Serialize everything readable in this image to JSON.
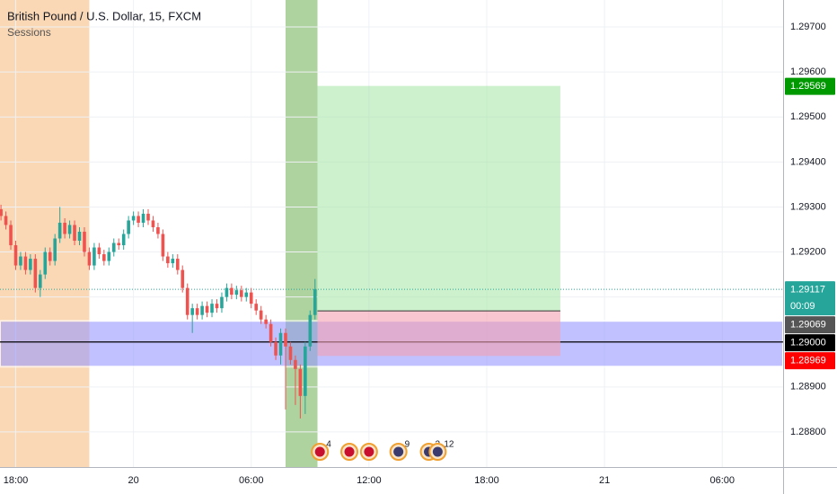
{
  "header": {
    "title": "British Pound / U.S. Dollar, 15, FXCM",
    "indicator": "Sessions"
  },
  "chart_data": {
    "type": "candlestick",
    "x": [
      17.25,
      17.5,
      17.75,
      18,
      18.25,
      18.5,
      18.75,
      19,
      19.25,
      19.5,
      19.75,
      20,
      20.25,
      20.5,
      20.75,
      21,
      21.25,
      21.5,
      21.75,
      22,
      22.25,
      22.5,
      22.75,
      23,
      23.25,
      23.5,
      23.75,
      24,
      24.25,
      24.5,
      24.75,
      25,
      25.25,
      25.5,
      25.75,
      26,
      26.25,
      26.5,
      26.75,
      27,
      27.25,
      27.5,
      27.75,
      28,
      28.25,
      28.5,
      28.75,
      29,
      29.25,
      29.5,
      29.75,
      30,
      30.25,
      30.5,
      30.75,
      31,
      31.25,
      31.5,
      31.75,
      32,
      32.25,
      32.5,
      32.75,
      33,
      33.25
    ],
    "open": [
      1.29295,
      1.2928,
      1.2926,
      1.29215,
      1.2917,
      1.2919,
      1.2916,
      1.29185,
      1.2912,
      1.2915,
      1.292,
      1.2918,
      1.2923,
      1.29265,
      1.2924,
      1.2926,
      1.29225,
      1.29245,
      1.292,
      1.2917,
      1.2921,
      1.29195,
      1.2918,
      1.292,
      1.2922,
      1.29215,
      1.2924,
      1.2927,
      1.2928,
      1.29265,
      1.29285,
      1.2927,
      1.29255,
      1.2924,
      1.2919,
      1.29175,
      1.29185,
      1.2916,
      1.2912,
      1.2906,
      1.29075,
      1.2906,
      1.2908,
      1.29065,
      1.29085,
      1.29075,
      1.291,
      1.2912,
      1.29105,
      1.29115,
      1.291,
      1.2911,
      1.29085,
      1.2907,
      1.2905,
      1.2904,
      1.29,
      1.2897,
      1.2902,
      1.2899,
      1.2896,
      1.2894,
      1.2888,
      1.2899,
      1.2906
    ],
    "high": [
      1.29305,
      1.2929,
      1.2927,
      1.29225,
      1.292,
      1.292,
      1.29195,
      1.29195,
      1.2916,
      1.2921,
      1.2921,
      1.2924,
      1.293,
      1.29275,
      1.2927,
      1.2927,
      1.29255,
      1.29255,
      1.2921,
      1.2922,
      1.2922,
      1.29205,
      1.2921,
      1.2923,
      1.2923,
      1.2925,
      1.2928,
      1.2929,
      1.2929,
      1.29295,
      1.29295,
      1.2928,
      1.29265,
      1.2925,
      1.292,
      1.29195,
      1.29195,
      1.2917,
      1.2913,
      1.29085,
      1.29085,
      1.2909,
      1.2909,
      1.29095,
      1.29095,
      1.2911,
      1.2913,
      1.2913,
      1.29125,
      1.29125,
      1.2912,
      1.2912,
      1.29095,
      1.2908,
      1.2906,
      1.2905,
      1.2901,
      1.2903,
      1.2903,
      1.29,
      1.2897,
      1.2895,
      1.29,
      1.2907,
      1.2914
    ],
    "low": [
      1.2927,
      1.2925,
      1.29205,
      1.2916,
      1.2916,
      1.2915,
      1.2915,
      1.2911,
      1.291,
      1.2914,
      1.2917,
      1.2917,
      1.2922,
      1.2923,
      1.2923,
      1.29215,
      1.29215,
      1.2919,
      1.2916,
      1.2916,
      1.29185,
      1.2917,
      1.2917,
      1.2919,
      1.29205,
      1.29205,
      1.2923,
      1.2926,
      1.29255,
      1.29255,
      1.2926,
      1.29245,
      1.2923,
      1.2918,
      1.29165,
      1.29165,
      1.2915,
      1.2911,
      1.2905,
      1.2902,
      1.2905,
      1.2905,
      1.29055,
      1.29055,
      1.29065,
      1.29065,
      1.2909,
      1.29095,
      1.29095,
      1.2909,
      1.2909,
      1.29075,
      1.2906,
      1.2904,
      1.2903,
      1.2899,
      1.2896,
      1.2895,
      1.2885,
      1.2895,
      1.2886,
      1.2883,
      1.2884,
      1.2898,
      1.2905
    ],
    "close": [
      1.2928,
      1.2926,
      1.29215,
      1.2917,
      1.2919,
      1.2916,
      1.29185,
      1.2912,
      1.2915,
      1.292,
      1.2918,
      1.2923,
      1.29265,
      1.2924,
      1.2926,
      1.29225,
      1.29245,
      1.292,
      1.2917,
      1.2921,
      1.29195,
      1.2918,
      1.292,
      1.2922,
      1.29215,
      1.2924,
      1.2927,
      1.2928,
      1.29265,
      1.29285,
      1.2927,
      1.29255,
      1.2924,
      1.2919,
      1.29175,
      1.29185,
      1.2916,
      1.2912,
      1.2906,
      1.29075,
      1.2906,
      1.2908,
      1.29065,
      1.29085,
      1.29075,
      1.291,
      1.2912,
      1.29105,
      1.29115,
      1.291,
      1.2911,
      1.29085,
      1.2907,
      1.2905,
      1.2904,
      1.29,
      1.2897,
      1.2902,
      1.2899,
      1.2896,
      1.2894,
      1.2888,
      1.2899,
      1.2906,
      1.29117
    ],
    "up_color": "#26a69a",
    "down_color": "#ef5350",
    "xlim": [
      17.2,
      57.1
    ],
    "ylim": [
      1.28722,
      1.2976
    ],
    "xticks": [
      {
        "value": 18,
        "label": "18:00"
      },
      {
        "value": 24,
        "label": "20"
      },
      {
        "value": 30,
        "label": "06:00"
      },
      {
        "value": 36,
        "label": "12:00"
      },
      {
        "value": 42,
        "label": "18:00"
      },
      {
        "value": 48,
        "label": "21"
      },
      {
        "value": 54,
        "label": "06:00"
      }
    ],
    "yticks": [
      {
        "value": 1.288,
        "label": "1.28800"
      },
      {
        "value": 1.289,
        "label": "1.28900"
      },
      {
        "value": 1.29,
        "label": "1.29000"
      },
      {
        "value": 1.291,
        "label": "1.29100"
      },
      {
        "value": 1.292,
        "label": "1.29200"
      },
      {
        "value": 1.293,
        "label": "1.29300"
      },
      {
        "value": 1.294,
        "label": "1.29400"
      },
      {
        "value": 1.295,
        "label": "1.29500"
      },
      {
        "value": 1.296,
        "label": "1.29600"
      },
      {
        "value": 1.297,
        "label": "1.29700"
      }
    ],
    "grid": true,
    "sessions": [
      {
        "start": 17.2,
        "end": 21.75,
        "color": "#f9cb9c"
      },
      {
        "start": 31.75,
        "end": 33.375,
        "color": "#93c47d"
      }
    ],
    "position": {
      "start": 33.375,
      "end": 45.75,
      "entry": 1.29069,
      "target": 1.29569,
      "stop": 1.28969
    },
    "zone": {
      "top": 1.29047,
      "bottom": 1.28945,
      "line": 1.29,
      "color": "#9999ff"
    },
    "last_price": 1.29117,
    "countdown": "00:09",
    "price_labels": [
      {
        "value": 1.29569,
        "label": "1.29569",
        "color": "#009900"
      },
      {
        "value": 1.29117,
        "label": "1.29117",
        "color": "#26a69a"
      },
      {
        "value": 1.29069,
        "label": "1.29069",
        "color": "#555555"
      },
      {
        "value": 1.29,
        "label": "1.29000",
        "color": "#000000"
      },
      {
        "value": 1.28969,
        "label": "1.28969",
        "color": "#ff0000"
      }
    ],
    "events": [
      {
        "time": 33.5,
        "count": 4
      },
      {
        "time": 35
      },
      {
        "time": 36
      },
      {
        "time": 37.5,
        "count": 9
      },
      {
        "time": 39.05,
        "count": 2
      },
      {
        "time": 39.5,
        "count": 12
      }
    ]
  }
}
